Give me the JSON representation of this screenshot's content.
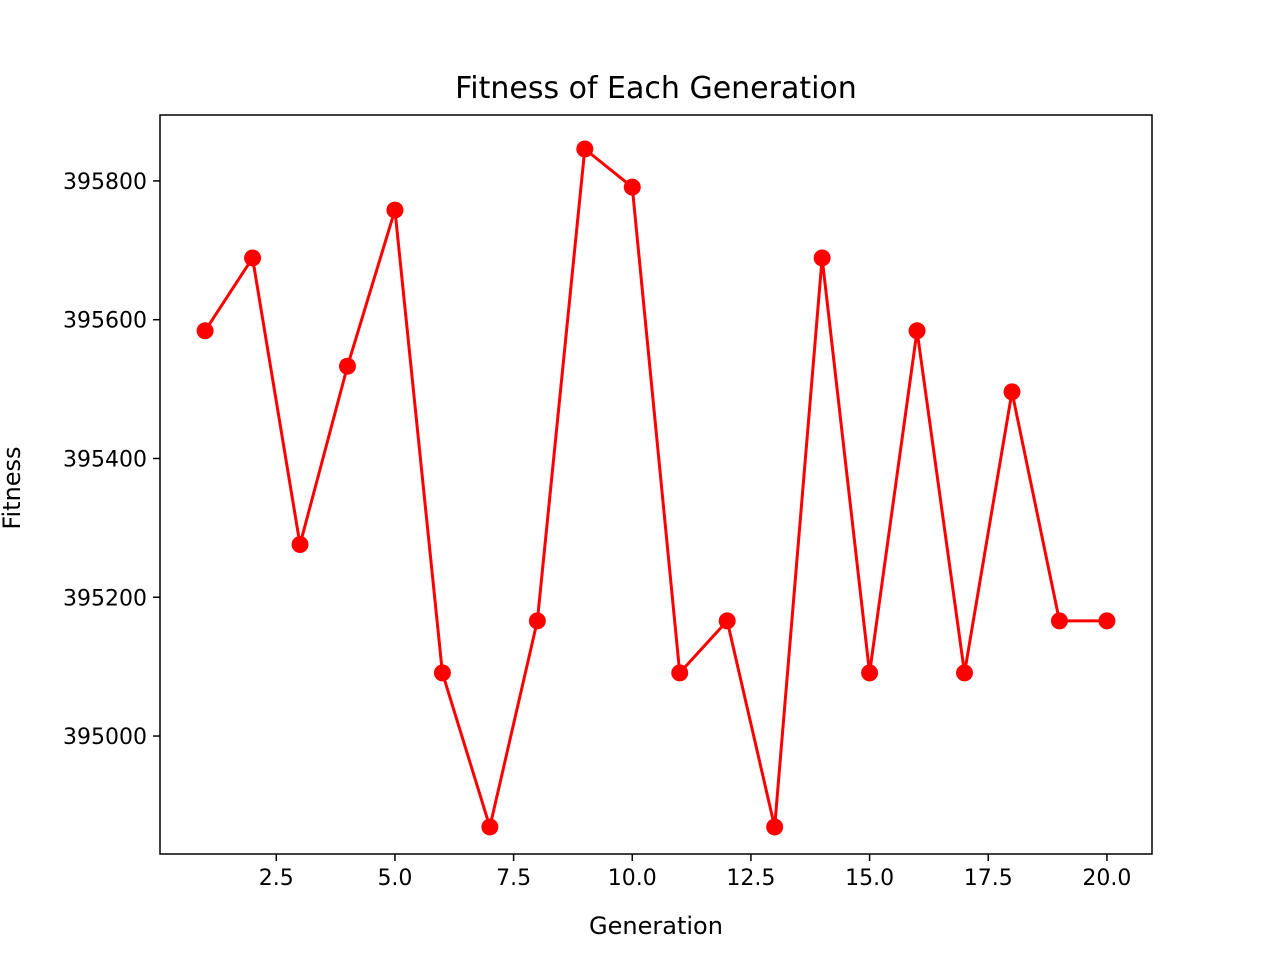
{
  "chart_data": {
    "type": "line",
    "title": "Fitness of Each Generation",
    "xlabel": "Generation",
    "ylabel": "Fitness",
    "xlim": [
      0.05,
      20.95
    ],
    "ylim": [
      394830,
      395895
    ],
    "xticks": [
      2.5,
      5.0,
      7.5,
      10.0,
      12.5,
      15.0,
      17.5,
      20.0
    ],
    "xtick_labels": [
      "2.5",
      "5.0",
      "7.5",
      "10.0",
      "12.5",
      "15.0",
      "17.5",
      "20.0"
    ],
    "yticks": [
      395000,
      395200,
      395400,
      395600,
      395800
    ],
    "ytick_labels": [
      "395000",
      "395200",
      "395400",
      "395600",
      "395800"
    ],
    "grid": false,
    "series": [
      {
        "color": "#ff0000",
        "marker": "circle",
        "x": [
          1,
          2,
          3,
          4,
          5,
          6,
          7,
          8,
          9,
          10,
          11,
          12,
          13,
          14,
          15,
          16,
          17,
          18,
          19,
          20
        ],
        "y": [
          395584,
          395689,
          395276,
          395533,
          395758,
          395091,
          394869,
          395166,
          395846,
          395791,
          395091,
          395166,
          394869,
          395689,
          395091,
          395584,
          395091,
          395496,
          395166,
          395166
        ]
      }
    ]
  }
}
